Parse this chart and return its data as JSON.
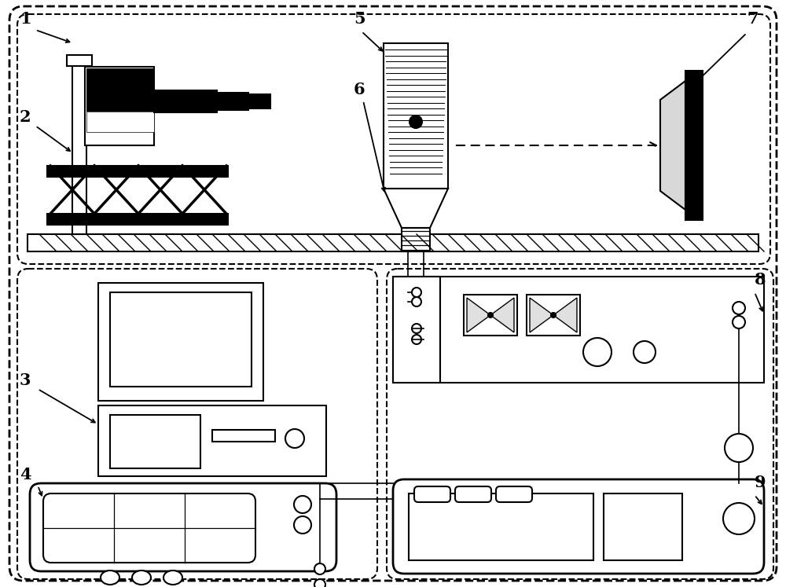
{
  "bg": "#ffffff",
  "fw": 10.0,
  "fh": 7.47,
  "dpi": 100
}
